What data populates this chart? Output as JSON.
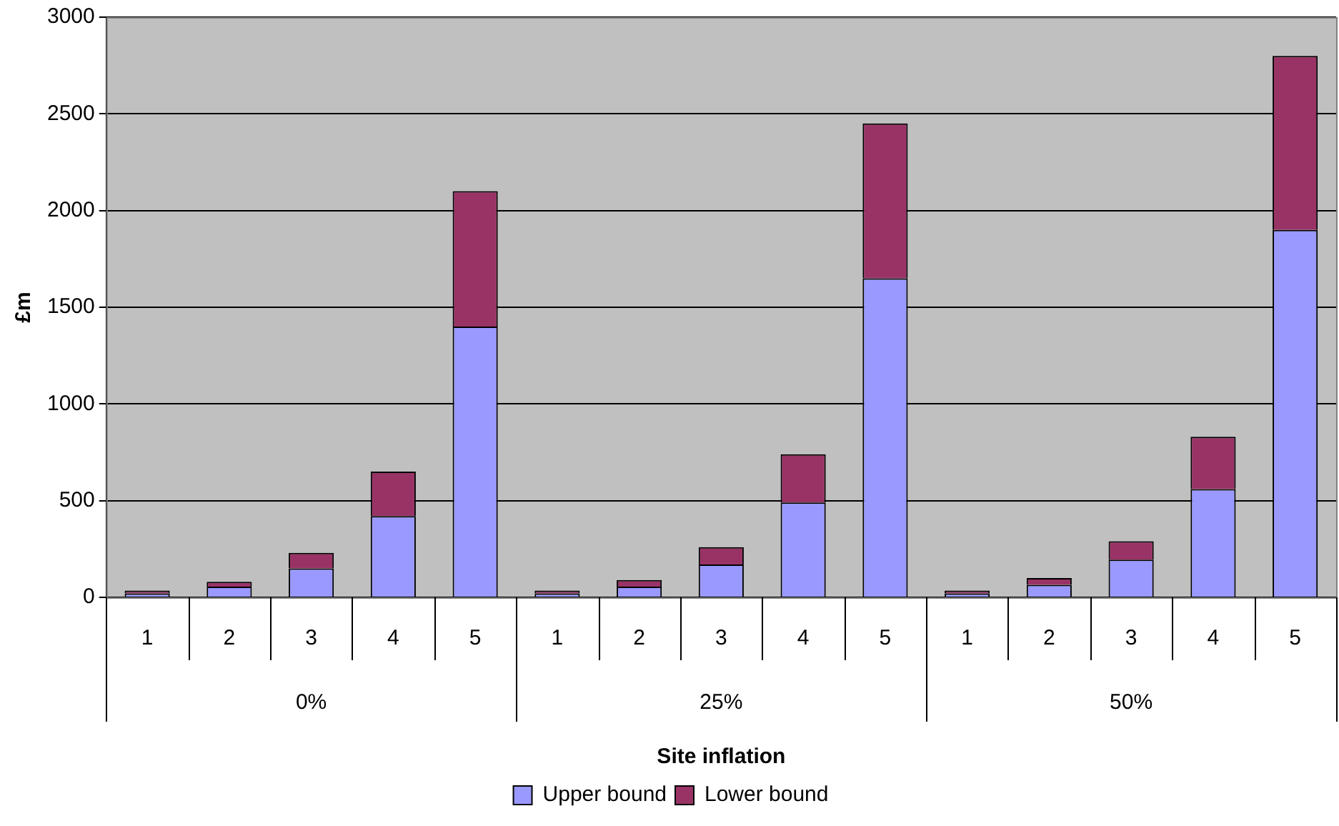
{
  "chart_data": {
    "type": "bar",
    "stacked": true,
    "xlabel": "Site inflation",
    "ylabel": "£m",
    "categories": [
      "1",
      "2",
      "3",
      "4",
      "5",
      "1",
      "2",
      "3",
      "4",
      "5",
      "1",
      "2",
      "3",
      "4",
      "5"
    ],
    "series": [
      {
        "name": "Upper bound",
        "color": "#9999ff",
        "values": [
          20,
          55,
          150,
          420,
          1400,
          20,
          55,
          170,
          490,
          1650,
          20,
          65,
          195,
          560,
          1900
        ]
      },
      {
        "name": "Lower bound",
        "color": "#993366",
        "values": [
          15,
          25,
          80,
          230,
          700,
          15,
          35,
          90,
          250,
          800,
          15,
          35,
          95,
          270,
          900
        ]
      }
    ],
    "annotations": [
      "0%",
      "25%",
      "50%"
    ],
    "ylim": [
      0,
      3000
    ],
    "yticks": [
      0,
      500,
      1000,
      1500,
      2000,
      2500,
      3000
    ],
    "grid": "y",
    "legend": "bottom"
  }
}
